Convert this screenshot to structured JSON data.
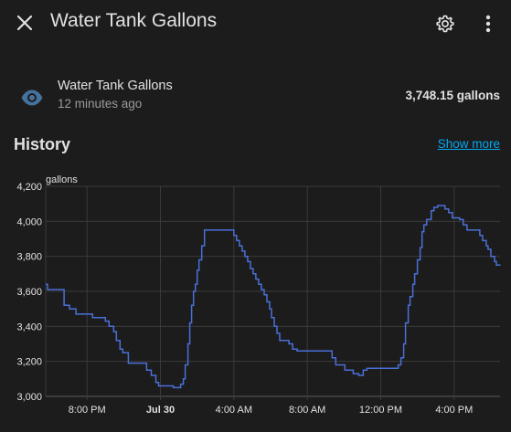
{
  "dialog": {
    "title": "Water Tank Gallons"
  },
  "entity": {
    "name": "Water Tank Gallons",
    "last_changed": "12 minutes ago",
    "state": "3,748.15 gallons",
    "icon": "eye-icon"
  },
  "history": {
    "title": "History",
    "show_more": "Show more"
  },
  "colors": {
    "background": "#1c1c1c",
    "line": "#4a6fd8",
    "link": "#03a9f4",
    "icon": "#44739e"
  },
  "chart_data": {
    "type": "line",
    "ylabel": "gallons",
    "ylim": [
      3000,
      4200
    ],
    "y_ticks": [
      "3,000",
      "3,200",
      "3,400",
      "3,600",
      "3,800",
      "4,000",
      "4,200"
    ],
    "x_ticks": [
      "8:00 PM",
      "Jul 30",
      "4:00 AM",
      "8:00 AM",
      "12:00 PM",
      "4:00 PM"
    ],
    "x_ticks_hours": [
      20,
      24,
      28,
      32,
      36,
      40
    ],
    "x_tick_bold": [
      false,
      true,
      false,
      false,
      false,
      false
    ],
    "x_range_hours": [
      17.75,
      42.5
    ],
    "step": true,
    "series": [
      {
        "points": [
          [
            17.75,
            3640
          ],
          [
            17.85,
            3610
          ],
          [
            18.6,
            3610
          ],
          [
            18.75,
            3520
          ],
          [
            19.05,
            3500
          ],
          [
            19.4,
            3470
          ],
          [
            20.1,
            3470
          ],
          [
            20.3,
            3450
          ],
          [
            21.0,
            3430
          ],
          [
            21.2,
            3400
          ],
          [
            21.45,
            3370
          ],
          [
            21.6,
            3320
          ],
          [
            21.8,
            3270
          ],
          [
            21.95,
            3250
          ],
          [
            22.25,
            3190
          ],
          [
            23.25,
            3150
          ],
          [
            23.5,
            3120
          ],
          [
            23.75,
            3080
          ],
          [
            23.9,
            3060
          ],
          [
            24.7,
            3050
          ],
          [
            25.1,
            3070
          ],
          [
            25.25,
            3100
          ],
          [
            25.35,
            3180
          ],
          [
            25.5,
            3300
          ],
          [
            25.6,
            3420
          ],
          [
            25.7,
            3520
          ],
          [
            25.8,
            3600
          ],
          [
            25.9,
            3640
          ],
          [
            26.0,
            3720
          ],
          [
            26.1,
            3780
          ],
          [
            26.25,
            3860
          ],
          [
            26.4,
            3950
          ],
          [
            27.8,
            3950
          ],
          [
            28.0,
            3920
          ],
          [
            28.15,
            3890
          ],
          [
            28.3,
            3860
          ],
          [
            28.45,
            3830
          ],
          [
            28.6,
            3800
          ],
          [
            28.75,
            3770
          ],
          [
            28.9,
            3730
          ],
          [
            29.05,
            3700
          ],
          [
            29.2,
            3670
          ],
          [
            29.35,
            3640
          ],
          [
            29.5,
            3610
          ],
          [
            29.65,
            3580
          ],
          [
            29.8,
            3540
          ],
          [
            29.95,
            3500
          ],
          [
            30.05,
            3450
          ],
          [
            30.2,
            3400
          ],
          [
            30.35,
            3360
          ],
          [
            30.5,
            3320
          ],
          [
            31.0,
            3300
          ],
          [
            31.2,
            3270
          ],
          [
            31.45,
            3260
          ],
          [
            33.15,
            3260
          ],
          [
            33.35,
            3220
          ],
          [
            33.55,
            3180
          ],
          [
            34.05,
            3150
          ],
          [
            34.5,
            3130
          ],
          [
            34.8,
            3120
          ],
          [
            35.05,
            3150
          ],
          [
            35.25,
            3160
          ],
          [
            36.8,
            3160
          ],
          [
            36.95,
            3180
          ],
          [
            37.1,
            3220
          ],
          [
            37.25,
            3300
          ],
          [
            37.35,
            3420
          ],
          [
            37.5,
            3520
          ],
          [
            37.6,
            3570
          ],
          [
            37.75,
            3640
          ],
          [
            37.85,
            3700
          ],
          [
            38.0,
            3780
          ],
          [
            38.15,
            3850
          ],
          [
            38.25,
            3940
          ],
          [
            38.35,
            3980
          ],
          [
            38.5,
            4010
          ],
          [
            38.75,
            4060
          ],
          [
            38.9,
            4080
          ],
          [
            39.1,
            4090
          ],
          [
            39.5,
            4070
          ],
          [
            39.7,
            4050
          ],
          [
            39.9,
            4020
          ],
          [
            40.3,
            4010
          ],
          [
            40.5,
            3980
          ],
          [
            40.7,
            3950
          ],
          [
            41.25,
            3950
          ],
          [
            41.4,
            3920
          ],
          [
            41.55,
            3890
          ],
          [
            41.75,
            3860
          ],
          [
            41.85,
            3840
          ],
          [
            42.0,
            3800
          ],
          [
            42.2,
            3770
          ],
          [
            42.3,
            3750
          ],
          [
            42.5,
            3748
          ]
        ]
      }
    ]
  }
}
